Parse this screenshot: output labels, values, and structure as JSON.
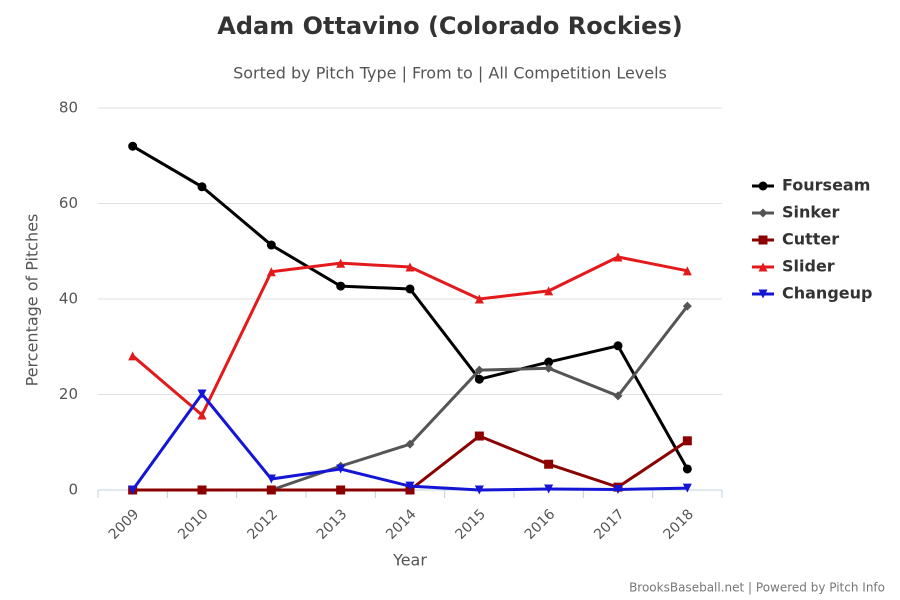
{
  "chart_data": {
    "type": "line",
    "title": "Adam Ottavino (Colorado Rockies)",
    "subtitle": "Sorted by Pitch Type | From to | All Competition Levels",
    "x_label": "Year",
    "y_label": "Percentage of Pitches",
    "credit": "BrooksBaseball.net | Powered by Pitch Info",
    "categories": [
      "2009",
      "2010",
      "2012",
      "2013",
      "2014",
      "2015",
      "2016",
      "2017",
      "2018"
    ],
    "ylim": [
      0,
      80
    ],
    "yticks": [
      0,
      20,
      40,
      60,
      80
    ],
    "grid": true,
    "legend": "right",
    "series": [
      {
        "name": "Fourseam",
        "color": "#000000",
        "marker": "circle",
        "values": [
          72.0,
          63.5,
          51.3,
          42.7,
          42.1,
          23.2,
          26.8,
          30.2,
          4.4
        ]
      },
      {
        "name": "Sinker",
        "color": "#555555",
        "marker": "diamond",
        "values": [
          null,
          null,
          0,
          5.0,
          9.6,
          25.1,
          25.5,
          19.7,
          38.5
        ]
      },
      {
        "name": "Cutter",
        "color": "#8b0000",
        "marker": "square",
        "values": [
          0,
          0,
          0,
          0,
          0,
          11.3,
          5.4,
          0.6,
          10.3
        ]
      },
      {
        "name": "Slider",
        "color": "#e31a1c",
        "marker": "triangle",
        "values": [
          28.1,
          15.7,
          45.7,
          47.5,
          46.7,
          40.0,
          41.7,
          48.8,
          45.9
        ]
      },
      {
        "name": "Changeup",
        "color": "#1515d6",
        "marker": "triangle-down",
        "values": [
          0,
          20.1,
          2.3,
          4.4,
          0.8,
          0,
          0.2,
          0.1,
          0.4
        ]
      }
    ]
  }
}
